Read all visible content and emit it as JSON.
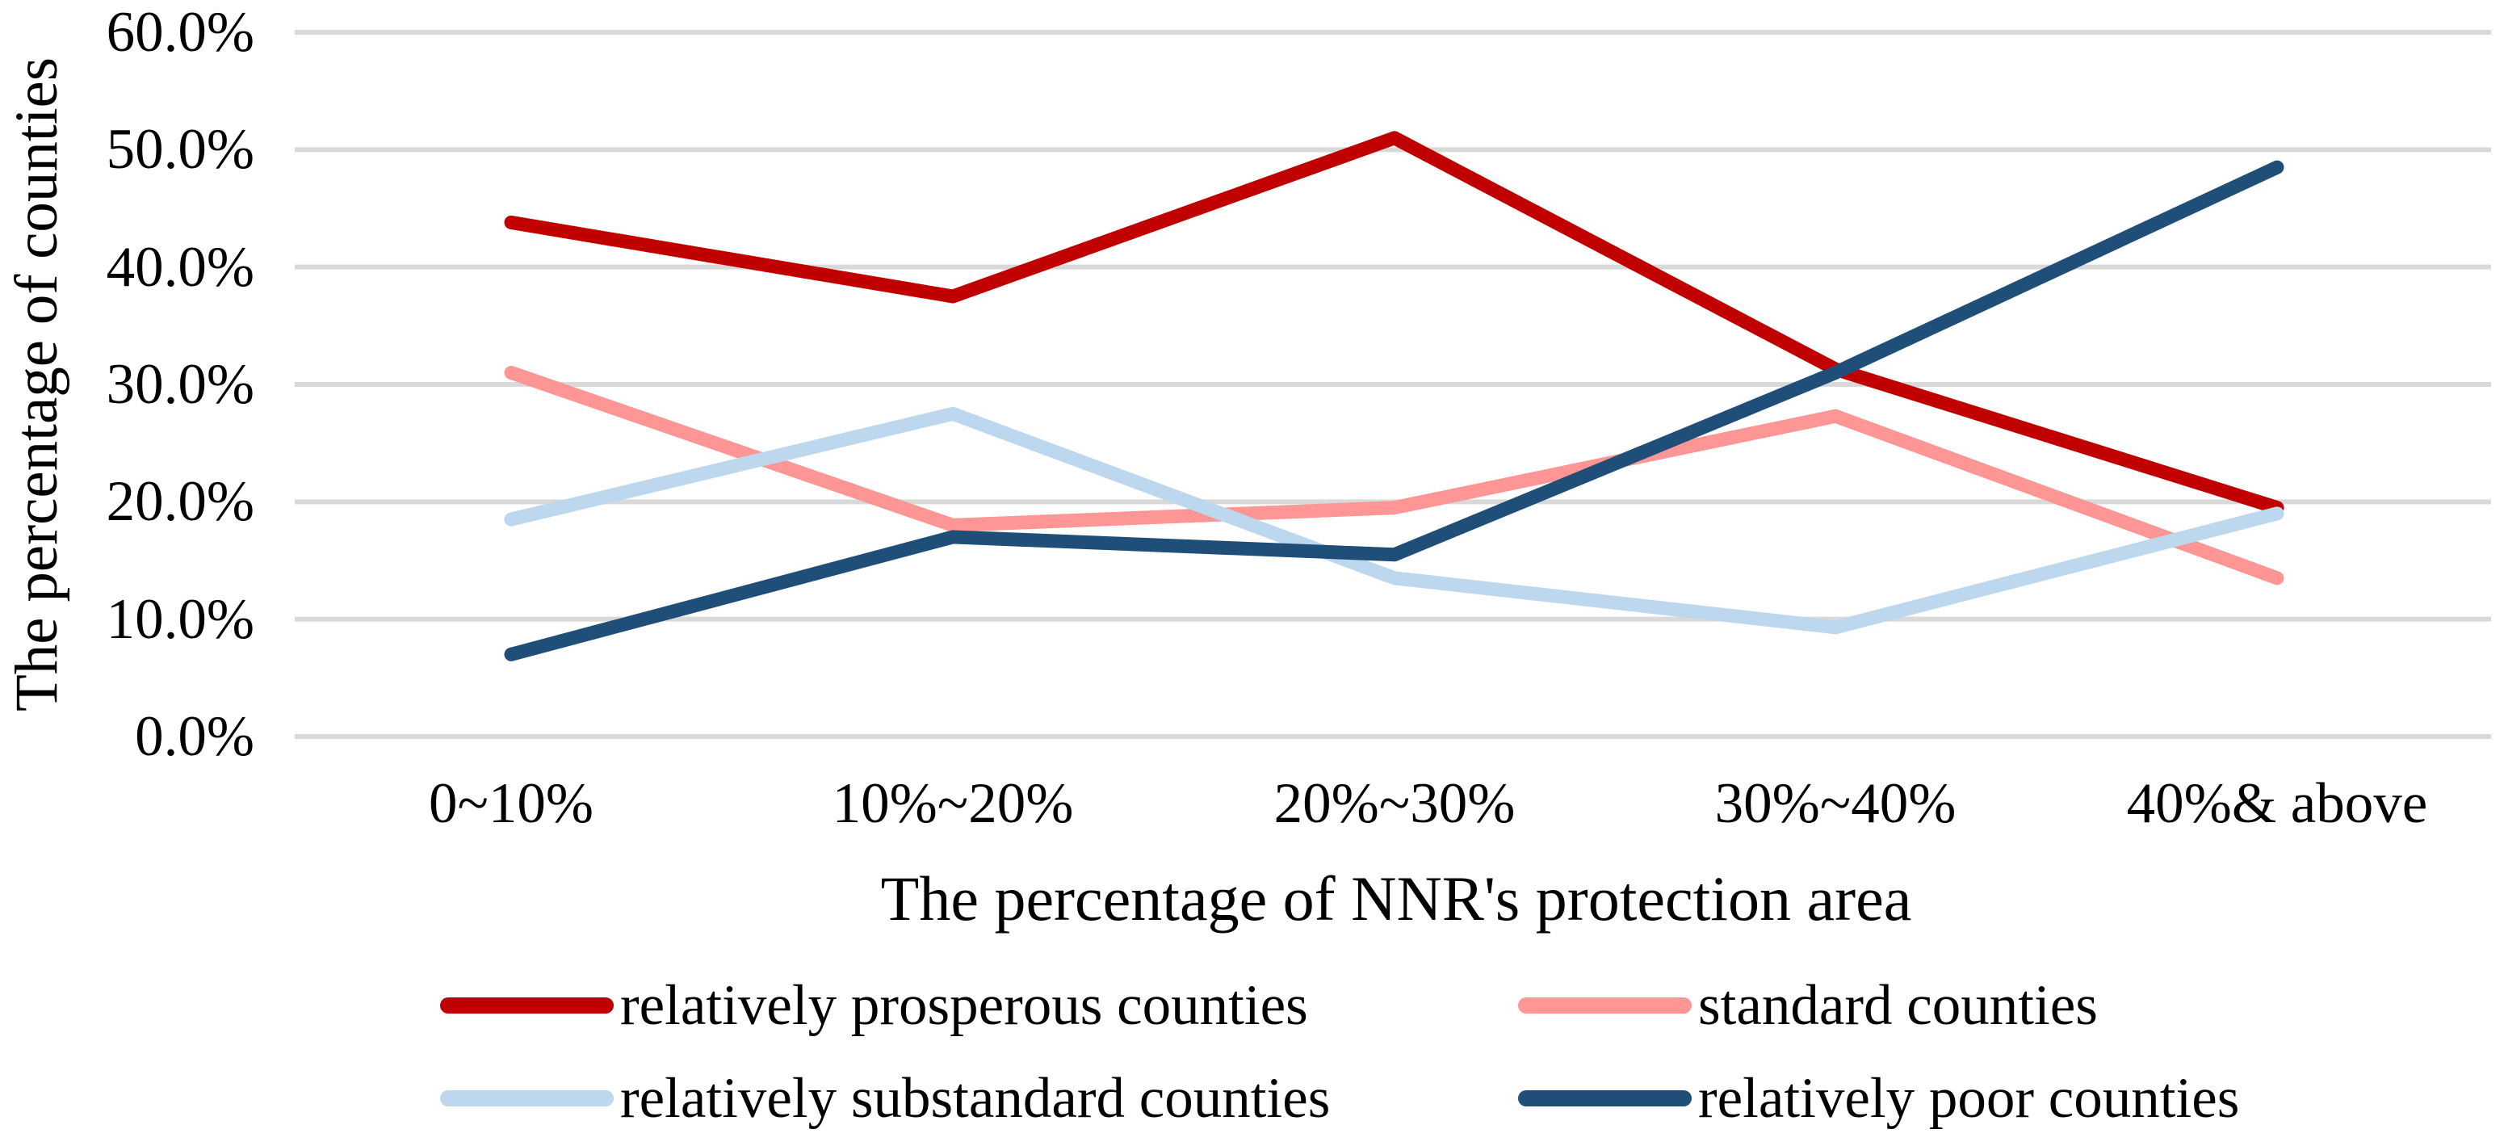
{
  "chart_data": {
    "type": "line",
    "title": "",
    "categories": [
      "0~10%",
      "10%~20%",
      "20%~30%",
      "30%~40%",
      "40%& above"
    ],
    "series": [
      {
        "name": "relatively prosperous counties",
        "color": "#C00000",
        "values": [
          43.8,
          37.5,
          51.0,
          31.3,
          19.5
        ]
      },
      {
        "name": "standard counties",
        "color": "#FD9694",
        "values": [
          31.0,
          18.0,
          19.5,
          27.3,
          13.5
        ]
      },
      {
        "name": "relatively substandard counties",
        "color": "#BDD7EE",
        "values": [
          18.5,
          27.5,
          13.5,
          9.3,
          19.0
        ]
      },
      {
        "name": "relatively poor counties",
        "color": "#1F4E79",
        "values": [
          7.0,
          17.0,
          15.5,
          31.0,
          48.5
        ]
      }
    ],
    "xlabel": "The percentage of NNR's protection area",
    "ylabel": "The percentage of counties",
    "ytick_labels": [
      "0.0%",
      "10.0%",
      "20.0%",
      "30.0%",
      "40.0%",
      "50.0%",
      "60.0%"
    ],
    "ylim": [
      0,
      60
    ],
    "ytick_step": 10,
    "grid": "horizontal",
    "gridline_color": "#D9D9D9",
    "legend_position": "bottom",
    "legend_columns": 2
  }
}
